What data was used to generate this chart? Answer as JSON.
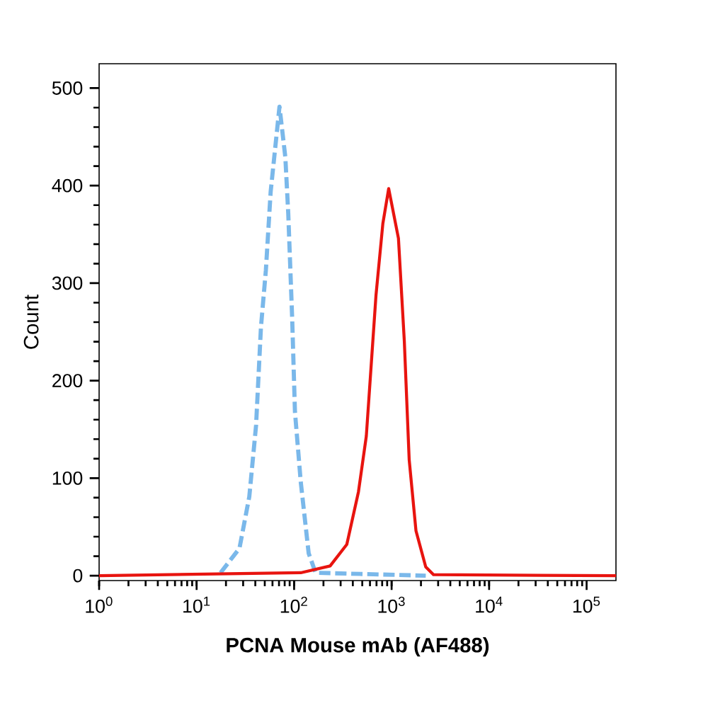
{
  "chart_data": {
    "type": "line",
    "xlabel": "PCNA Mouse mAb (AF488)",
    "ylabel": "Count",
    "log": "x",
    "xlim": [
      1,
      200000
    ],
    "ylim": [
      -5,
      525
    ],
    "xticks": [
      {
        "value": 1,
        "label": "10$^{0}$"
      },
      {
        "value": 10,
        "label": "10$^{1}$"
      },
      {
        "value": 100,
        "label": "10$^{2}$"
      },
      {
        "value": 1000,
        "label": "10$^{3}$"
      },
      {
        "value": 10000,
        "label": "10$^{4}$"
      },
      {
        "value": 100000,
        "label": "10$^{5}$"
      }
    ],
    "yticks": [
      0,
      100,
      200,
      300,
      400,
      500
    ],
    "marker": "none",
    "series": [
      {
        "color": "#7ab8ea",
        "line_style": "dashed",
        "x": [
          17.6,
          27.5,
          34.7,
          40.7,
          45.7,
          51.3,
          57.5,
          70.8,
          81.3,
          87.1,
          95.5,
          102,
          117,
          141,
          166,
          2240
        ],
        "values": [
          3,
          28,
          81,
          154,
          255,
          313,
          394,
          481,
          429,
          371,
          264,
          168,
          96,
          23,
          3,
          0
        ]
      },
      {
        "color": "#e8140f",
        "line_style": "solid",
        "x": [
          1,
          117,
          234,
          347,
          457,
          550,
          692,
          813,
          933,
          1175,
          1349,
          1514,
          1778,
          2239,
          2692,
          200000
        ],
        "values": [
          0,
          3,
          10,
          32,
          86,
          143,
          288,
          361,
          397,
          346,
          241,
          119,
          46,
          9,
          1,
          0
        ]
      }
    ]
  }
}
